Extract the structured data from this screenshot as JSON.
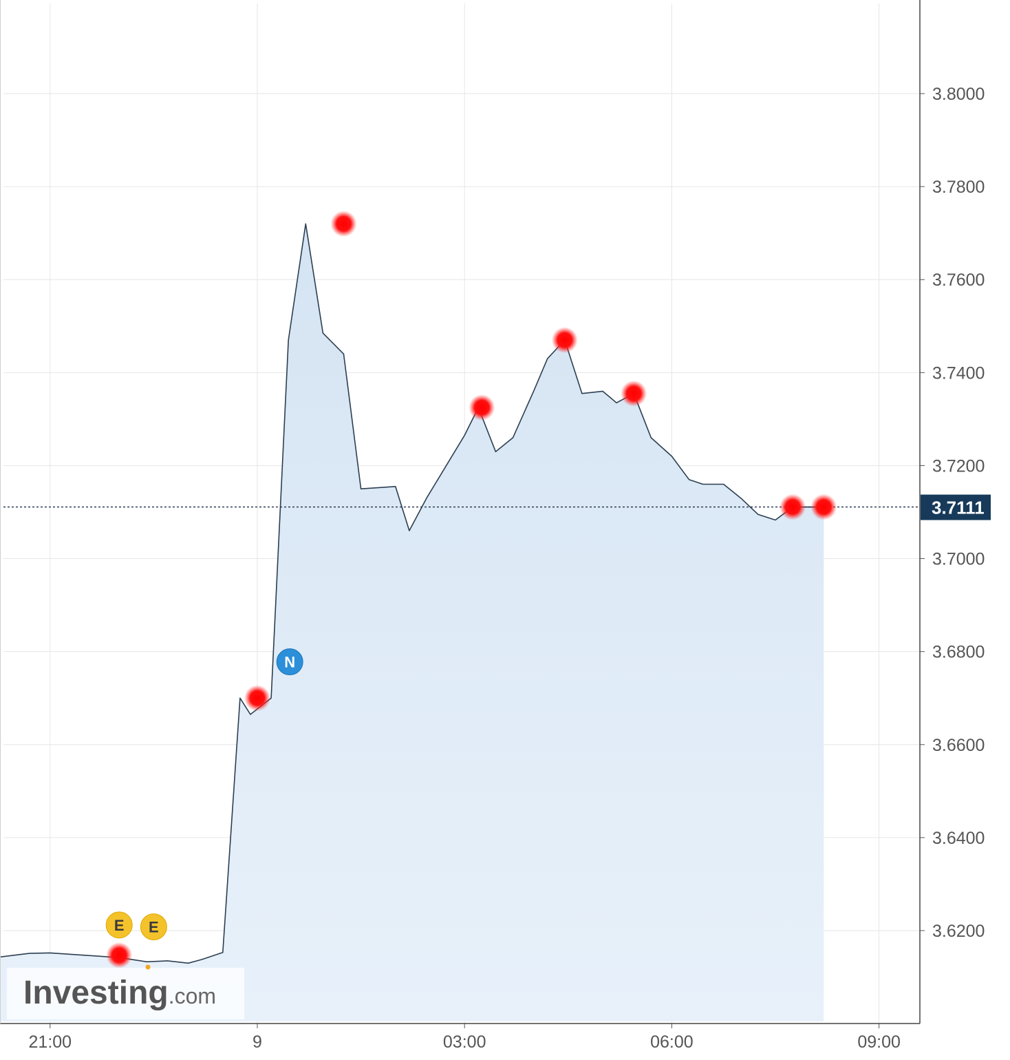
{
  "chart_data": {
    "type": "area",
    "title": "",
    "xlabel": "",
    "ylabel": "",
    "ylim": [
      3.599,
      3.82
    ],
    "xlim": [
      -5.5,
      24.5
    ],
    "grid": true,
    "y_ticks": [
      "3.8000",
      "3.7800",
      "3.7600",
      "3.7400",
      "3.7200",
      "3.7000",
      "3.6800",
      "3.6600",
      "3.6400",
      "3.6200"
    ],
    "x_ticks": [
      {
        "label": "21:00",
        "h": -3
      },
      {
        "label": "9",
        "h": 0
      },
      {
        "label": "03:00",
        "h": 3
      },
      {
        "label": "06:00",
        "h": 6
      },
      {
        "label": "09:00",
        "h": 9
      }
    ],
    "current_price": {
      "value": 3.7111,
      "label": "3.7111"
    },
    "series": [
      {
        "x": [
          -5.3,
          -5.2,
          -4.95,
          -4.7,
          -4.5,
          -4.2,
          -3.8,
          -3.3,
          -3.0,
          -2.5,
          -2.0,
          -1.6,
          -1.3,
          -1.0,
          -0.8,
          -0.5,
          -0.25,
          -0.1,
          0.2,
          0.45,
          0.7,
          0.95,
          1.25,
          1.5,
          2.0,
          2.2,
          2.45,
          3.0,
          3.2,
          3.45,
          3.7,
          4.0,
          4.2,
          4.45,
          4.7,
          5.0,
          5.2,
          5.45,
          5.7,
          6.0,
          6.25,
          6.45,
          6.75,
          7.0,
          7.25,
          7.5,
          7.75,
          8.2
        ],
        "values": [
          3.6163,
          3.6158,
          3.6162,
          3.6157,
          3.6148,
          3.6138,
          3.6142,
          3.6151,
          3.6152,
          3.6147,
          3.6142,
          3.6133,
          3.6135,
          3.613,
          3.6138,
          3.6153,
          3.67,
          3.6665,
          3.67,
          3.747,
          3.772,
          3.7485,
          3.744,
          3.715,
          3.7155,
          3.706,
          3.713,
          3.7265,
          3.7325,
          3.723,
          3.726,
          3.736,
          3.743,
          3.747,
          3.7355,
          3.736,
          3.7335,
          3.7355,
          3.726,
          3.722,
          3.717,
          3.716,
          3.716,
          3.713,
          3.7095,
          3.7083,
          3.7111,
          3.7111
        ]
      }
    ],
    "markers": [
      {
        "h": -2.0,
        "value": 3.6147
      },
      {
        "h": 0.0,
        "value": 3.67
      },
      {
        "h": 1.25,
        "value": 3.772
      },
      {
        "h": 3.25,
        "value": 3.7325
      },
      {
        "h": 4.45,
        "value": 3.747
      },
      {
        "h": 5.45,
        "value": 3.7355
      },
      {
        "h": 7.75,
        "value": 3.7111
      },
      {
        "h": 8.2,
        "value": 3.7111
      }
    ],
    "event_badges": [
      {
        "letter": "E",
        "h": -2.0,
        "value": 3.6212
      },
      {
        "letter": "E",
        "h": -1.5,
        "value": 3.6208
      },
      {
        "letter": "N",
        "h": 0.47,
        "value": 3.6778
      }
    ],
    "colors": {
      "line": "#2c3e50",
      "fill": "#dce8f5",
      "marker": "#ff1a1a",
      "badge_e": "#f4c22b",
      "badge_n": "#2b8fd9",
      "price_label_bg": "#173a5a",
      "grid": "#e6e6e6"
    }
  },
  "logo": {
    "main": "Investing",
    "suffix": ".com"
  }
}
